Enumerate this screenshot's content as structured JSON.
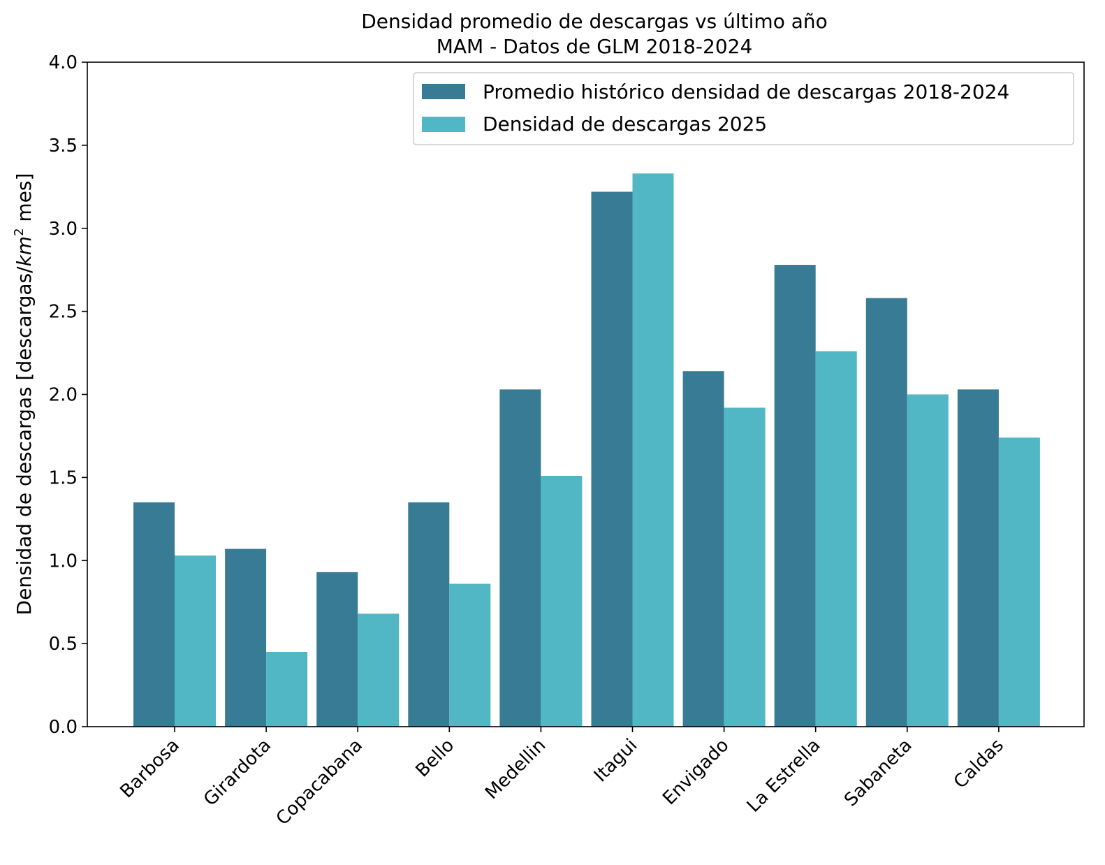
{
  "chart_data": {
    "type": "bar",
    "title": "Densidad promedio de descargas vs último año",
    "subtitle": "MAM - Datos de GLM 2018-2024",
    "ylabel_prefix": "Densidad de descargas [descargas/",
    "ylabel_unit": "km",
    "ylabel_exp": "2",
    "ylabel_suffix": " mes]",
    "xlabel": "",
    "ylim": [
      0,
      4.0
    ],
    "yticks": [
      "0.0",
      "0.5",
      "1.0",
      "1.5",
      "2.0",
      "2.5",
      "3.0",
      "3.5",
      "4.0"
    ],
    "ytick_values": [
      0,
      0.5,
      1.0,
      1.5,
      2.0,
      2.5,
      3.0,
      3.5,
      4.0
    ],
    "categories": [
      "Barbosa",
      "Girardota",
      "Copacabana",
      "Bello",
      "Medellin",
      "Itagui",
      "Envigado",
      "La Estrella",
      "Sabaneta",
      "Caldas"
    ],
    "series": [
      {
        "name": "Promedio histórico densidad de descargas 2018-2024",
        "color": "#387b95",
        "values": [
          1.35,
          1.07,
          0.93,
          1.35,
          2.03,
          3.22,
          2.14,
          2.78,
          2.58,
          2.03
        ]
      },
      {
        "name": "Densidad de descargas 2025",
        "color": "#52b7c5",
        "values": [
          1.03,
          0.45,
          0.68,
          0.86,
          1.51,
          3.33,
          1.92,
          2.26,
          2.0,
          1.74
        ]
      }
    ],
    "legend_position": "top-right",
    "grid": false
  }
}
